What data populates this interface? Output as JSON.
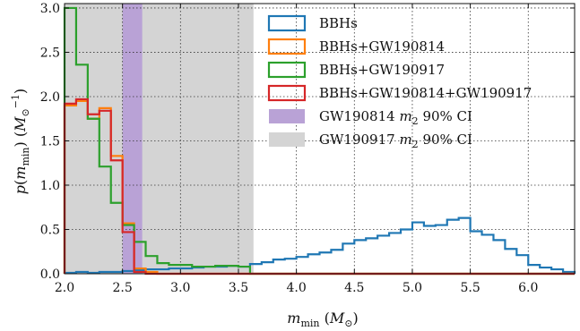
{
  "chart_data": {
    "type": "histogram",
    "xlabel": "m_min (M_⊙)",
    "ylabel": "p(m_min) (M_⊙^−1)",
    "xlim": [
      2.0,
      6.4
    ],
    "ylim": [
      0.0,
      3.05
    ],
    "xticks": [
      "2.0",
      "2.5",
      "3.0",
      "3.5",
      "4.0",
      "4.5",
      "5.0",
      "5.5",
      "6.0"
    ],
    "yticks": [
      "0.0",
      "0.5",
      "1.0",
      "1.5",
      "2.0",
      "2.5",
      "3.0"
    ],
    "grid": true,
    "legend_placement": "top-right",
    "bands": [
      {
        "name": "GW190814 m2 90% CI",
        "x0": 2.5,
        "x1": 2.67,
        "color": "#b9a2d6"
      },
      {
        "name": "GW190917 m2 90% CI",
        "x0": 2.0,
        "x1": 3.63,
        "color": "#d4d4d4"
      }
    ],
    "series": [
      {
        "name": "BBHs",
        "color": "#1f77b4",
        "edges": [
          2.0,
          2.1,
          2.2,
          2.3,
          2.4,
          2.5,
          2.6,
          2.7,
          2.8,
          2.9,
          3.0,
          3.1,
          3.2,
          3.3,
          3.4,
          3.5,
          3.6,
          3.7,
          3.8,
          3.9,
          4.0,
          4.1,
          4.2,
          4.3,
          4.4,
          4.5,
          4.6,
          4.7,
          4.8,
          4.9,
          5.0,
          5.1,
          5.2,
          5.3,
          5.4,
          5.5,
          5.6,
          5.7,
          5.8,
          5.9,
          6.0,
          6.1,
          6.2,
          6.3,
          6.4
        ],
        "values": [
          0.01,
          0.02,
          0.01,
          0.02,
          0.02,
          0.03,
          0.04,
          0.05,
          0.05,
          0.06,
          0.06,
          0.07,
          0.08,
          0.08,
          0.09,
          0.08,
          0.11,
          0.13,
          0.16,
          0.17,
          0.19,
          0.22,
          0.24,
          0.27,
          0.34,
          0.38,
          0.4,
          0.43,
          0.46,
          0.5,
          0.58,
          0.54,
          0.55,
          0.61,
          0.63,
          0.48,
          0.44,
          0.38,
          0.28,
          0.21,
          0.1,
          0.07,
          0.05,
          0.02
        ]
      },
      {
        "name": "BBHs+GW190814",
        "color": "#ff7f0e",
        "edges": [
          2.0,
          2.1,
          2.2,
          2.3,
          2.4,
          2.5,
          2.6,
          2.7,
          2.8,
          3.0,
          3.4,
          6.4
        ],
        "values": [
          1.9,
          1.95,
          1.75,
          1.87,
          1.33,
          0.57,
          0.06,
          0.02,
          0.0,
          0.0,
          0.0
        ]
      },
      {
        "name": "BBHs+GW190917",
        "color": "#2ca02c",
        "edges": [
          2.0,
          2.1,
          2.2,
          2.3,
          2.4,
          2.5,
          2.6,
          2.7,
          2.8,
          2.9,
          3.0,
          3.1,
          3.2,
          3.3,
          3.4,
          3.5,
          3.6,
          6.4
        ],
        "values": [
          3.0,
          2.36,
          1.75,
          1.21,
          0.8,
          0.55,
          0.36,
          0.2,
          0.12,
          0.1,
          0.1,
          0.08,
          0.08,
          0.09,
          0.09,
          0.08,
          0.0
        ]
      },
      {
        "name": "BBHs+GW190814+GW190917",
        "color": "#d62728",
        "edges": [
          2.0,
          2.1,
          2.2,
          2.3,
          2.4,
          2.5,
          2.6,
          2.7,
          6.4
        ],
        "values": [
          1.92,
          1.97,
          1.8,
          1.84,
          1.28,
          0.47,
          0.02,
          0.0
        ]
      }
    ]
  }
}
